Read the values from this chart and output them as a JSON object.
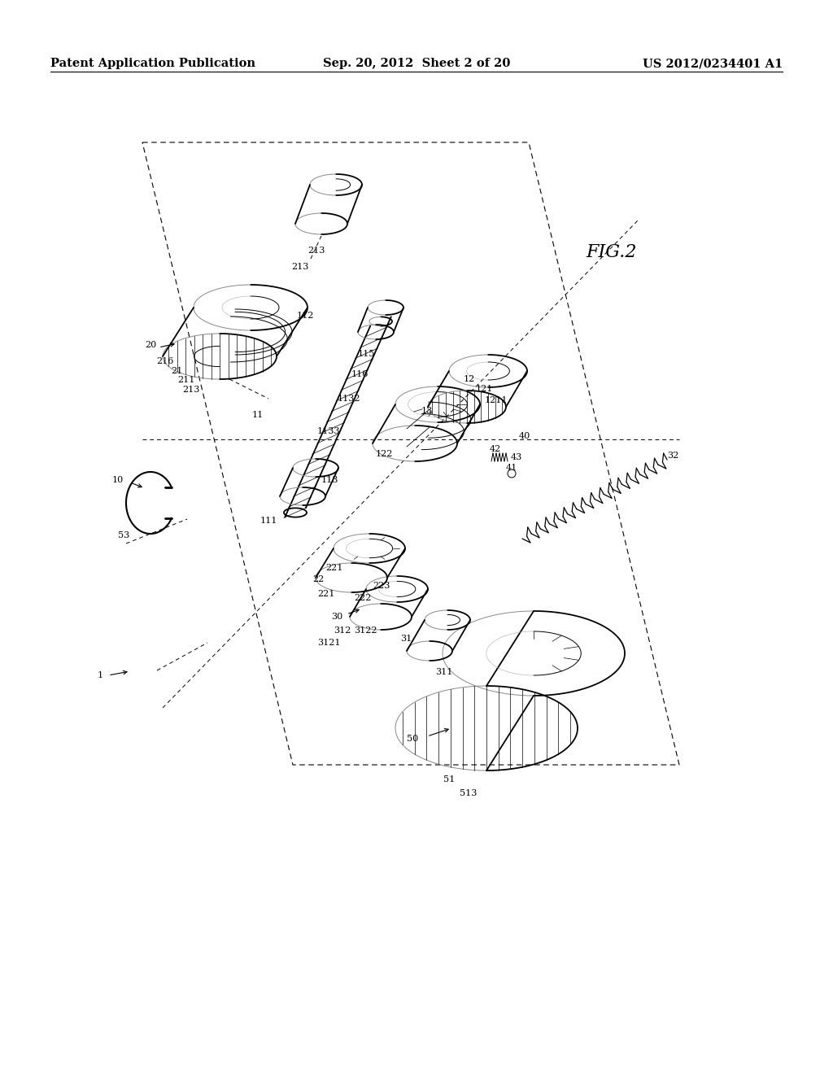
{
  "background_color": "#ffffff",
  "header_left": "Patent Application Publication",
  "header_center": "Sep. 20, 2012  Sheet 2 of 20",
  "header_right": "US 2012/0234401 A1",
  "header_fontsize": 10.5,
  "figure_label": "FIG.2",
  "fig_label_fontsize": 15
}
